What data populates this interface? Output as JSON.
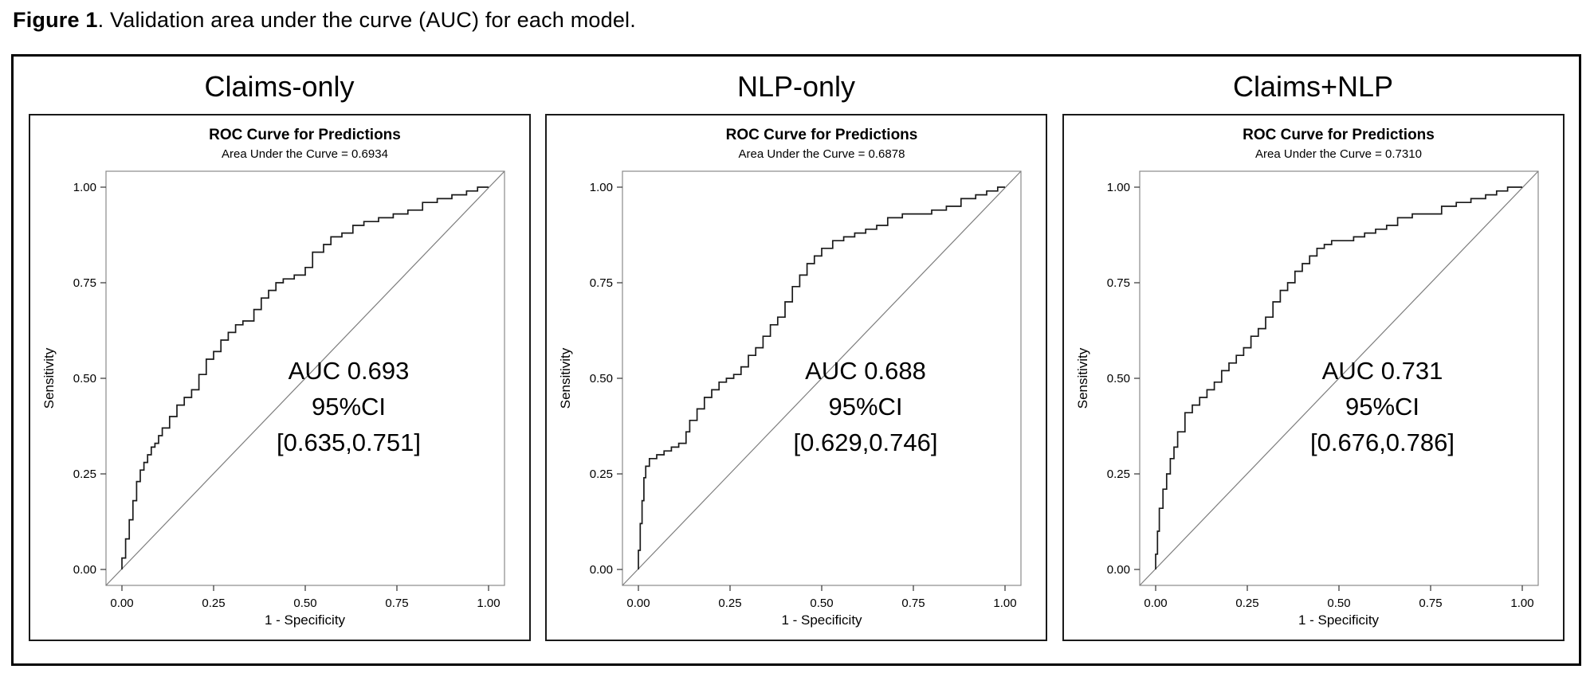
{
  "caption": {
    "label": "Figure 1",
    "rest": ". Validation area under the curve (AUC) for each model."
  },
  "colors": {
    "curve": "#1a1a1a",
    "diagonal": "#7d7d7d",
    "frame": "#8a8a8a",
    "outer_border": "#000000"
  },
  "panels": [
    {
      "title": "Claims-only",
      "chart_title": "ROC Curve for Predictions",
      "chart_subtitle": "Area Under the Curve = 0.6934",
      "ylabel": "Sensitivity",
      "xlabel": "1 - Specificity",
      "annotation": [
        "AUC 0.693",
        "95%CI",
        "[0.635,0.751]"
      ]
    },
    {
      "title": "NLP-only",
      "chart_title": "ROC Curve for Predictions",
      "chart_subtitle": "Area Under the Curve = 0.6878",
      "ylabel": "Sensitivity",
      "xlabel": "1 - Specificity",
      "annotation": [
        "AUC 0.688",
        "95%CI",
        "[0.629,0.746]"
      ]
    },
    {
      "title": "Claims+NLP",
      "chart_title": "ROC Curve for Predictions",
      "chart_subtitle": "Area Under the Curve = 0.7310",
      "ylabel": "Sensitivity",
      "xlabel": "1 - Specificity",
      "annotation": [
        "AUC 0.731",
        "95%CI",
        "[0.676,0.786]"
      ]
    }
  ],
  "chart_data": [
    {
      "type": "line",
      "panel": "Claims-only",
      "title": "ROC Curve for Predictions",
      "subtitle": "Area Under the Curve = 0.6934",
      "auc": 0.6934,
      "ci_95": [
        0.635,
        0.751
      ],
      "xlabel": "1 - Specificity",
      "ylabel": "Sensitivity",
      "xlim": [
        0,
        1
      ],
      "ylim": [
        0,
        1
      ],
      "x_ticks": [
        "0.00",
        "0.25",
        "0.50",
        "0.75",
        "1.00"
      ],
      "y_ticks": [
        "0.00",
        "0.25",
        "0.50",
        "0.75",
        "1.00"
      ],
      "reference_line": "diagonal",
      "grid": false,
      "legend": false,
      "series": [
        {
          "name": "ROC curve (step)",
          "points": [
            [
              0,
              0
            ],
            [
              0.01,
              0.03
            ],
            [
              0.02,
              0.08
            ],
            [
              0.03,
              0.13
            ],
            [
              0.04,
              0.18
            ],
            [
              0.05,
              0.23
            ],
            [
              0.06,
              0.26
            ],
            [
              0.07,
              0.28
            ],
            [
              0.08,
              0.3
            ],
            [
              0.09,
              0.32
            ],
            [
              0.1,
              0.33
            ],
            [
              0.11,
              0.35
            ],
            [
              0.13,
              0.37
            ],
            [
              0.15,
              0.4
            ],
            [
              0.17,
              0.43
            ],
            [
              0.19,
              0.45
            ],
            [
              0.21,
              0.47
            ],
            [
              0.23,
              0.51
            ],
            [
              0.25,
              0.55
            ],
            [
              0.27,
              0.57
            ],
            [
              0.29,
              0.6
            ],
            [
              0.31,
              0.62
            ],
            [
              0.33,
              0.64
            ],
            [
              0.36,
              0.65
            ],
            [
              0.38,
              0.68
            ],
            [
              0.4,
              0.71
            ],
            [
              0.42,
              0.73
            ],
            [
              0.44,
              0.75
            ],
            [
              0.47,
              0.76
            ],
            [
              0.5,
              0.77
            ],
            [
              0.52,
              0.79
            ],
            [
              0.55,
              0.83
            ],
            [
              0.57,
              0.85
            ],
            [
              0.6,
              0.87
            ],
            [
              0.63,
              0.88
            ],
            [
              0.66,
              0.9
            ],
            [
              0.7,
              0.91
            ],
            [
              0.74,
              0.92
            ],
            [
              0.78,
              0.93
            ],
            [
              0.82,
              0.94
            ],
            [
              0.86,
              0.96
            ],
            [
              0.9,
              0.97
            ],
            [
              0.94,
              0.98
            ],
            [
              0.97,
              0.99
            ],
            [
              1,
              1
            ]
          ]
        }
      ]
    },
    {
      "type": "line",
      "panel": "NLP-only",
      "title": "ROC Curve for Predictions",
      "subtitle": "Area Under the Curve = 0.6878",
      "auc": 0.6878,
      "ci_95": [
        0.629,
        0.746
      ],
      "xlabel": "1 - Specificity",
      "ylabel": "Sensitivity",
      "xlim": [
        0,
        1
      ],
      "ylim": [
        0,
        1
      ],
      "x_ticks": [
        "0.00",
        "0.25",
        "0.50",
        "0.75",
        "1.00"
      ],
      "y_ticks": [
        "0.00",
        "0.25",
        "0.50",
        "0.75",
        "1.00"
      ],
      "reference_line": "diagonal",
      "grid": false,
      "legend": false,
      "series": [
        {
          "name": "ROC curve (step)",
          "points": [
            [
              0,
              0
            ],
            [
              0.005,
              0.05
            ],
            [
              0.01,
              0.12
            ],
            [
              0.015,
              0.18
            ],
            [
              0.02,
              0.24
            ],
            [
              0.03,
              0.27
            ],
            [
              0.05,
              0.29
            ],
            [
              0.07,
              0.3
            ],
            [
              0.09,
              0.31
            ],
            [
              0.11,
              0.32
            ],
            [
              0.13,
              0.33
            ],
            [
              0.14,
              0.36
            ],
            [
              0.16,
              0.39
            ],
            [
              0.18,
              0.42
            ],
            [
              0.2,
              0.45
            ],
            [
              0.22,
              0.47
            ],
            [
              0.24,
              0.49
            ],
            [
              0.26,
              0.5
            ],
            [
              0.28,
              0.51
            ],
            [
              0.3,
              0.53
            ],
            [
              0.32,
              0.56
            ],
            [
              0.34,
              0.58
            ],
            [
              0.36,
              0.61
            ],
            [
              0.38,
              0.64
            ],
            [
              0.4,
              0.66
            ],
            [
              0.42,
              0.7
            ],
            [
              0.44,
              0.74
            ],
            [
              0.46,
              0.77
            ],
            [
              0.48,
              0.8
            ],
            [
              0.5,
              0.82
            ],
            [
              0.53,
              0.84
            ],
            [
              0.56,
              0.86
            ],
            [
              0.59,
              0.87
            ],
            [
              0.62,
              0.88
            ],
            [
              0.65,
              0.89
            ],
            [
              0.68,
              0.9
            ],
            [
              0.72,
              0.92
            ],
            [
              0.76,
              0.93
            ],
            [
              0.8,
              0.93
            ],
            [
              0.84,
              0.94
            ],
            [
              0.88,
              0.95
            ],
            [
              0.92,
              0.97
            ],
            [
              0.95,
              0.98
            ],
            [
              0.98,
              0.99
            ],
            [
              1,
              1
            ]
          ]
        }
      ]
    },
    {
      "type": "line",
      "panel": "Claims+NLP",
      "title": "ROC Curve for Predictions",
      "subtitle": "Area Under the Curve = 0.7310",
      "auc": 0.731,
      "ci_95": [
        0.676,
        0.786
      ],
      "xlabel": "1 - Specificity",
      "ylabel": "Sensitivity",
      "xlim": [
        0,
        1
      ],
      "ylim": [
        0,
        1
      ],
      "x_ticks": [
        "0.00",
        "0.25",
        "0.50",
        "0.75",
        "1.00"
      ],
      "y_ticks": [
        "0.00",
        "0.25",
        "0.50",
        "0.75",
        "1.00"
      ],
      "reference_line": "diagonal",
      "grid": false,
      "legend": false,
      "series": [
        {
          "name": "ROC curve (step)",
          "points": [
            [
              0,
              0
            ],
            [
              0.005,
              0.04
            ],
            [
              0.01,
              0.1
            ],
            [
              0.02,
              0.16
            ],
            [
              0.03,
              0.21
            ],
            [
              0.04,
              0.25
            ],
            [
              0.05,
              0.29
            ],
            [
              0.06,
              0.32
            ],
            [
              0.08,
              0.36
            ],
            [
              0.1,
              0.41
            ],
            [
              0.12,
              0.43
            ],
            [
              0.14,
              0.45
            ],
            [
              0.16,
              0.47
            ],
            [
              0.18,
              0.49
            ],
            [
              0.2,
              0.52
            ],
            [
              0.22,
              0.54
            ],
            [
              0.24,
              0.56
            ],
            [
              0.26,
              0.58
            ],
            [
              0.28,
              0.61
            ],
            [
              0.3,
              0.63
            ],
            [
              0.32,
              0.66
            ],
            [
              0.34,
              0.7
            ],
            [
              0.36,
              0.73
            ],
            [
              0.38,
              0.75
            ],
            [
              0.4,
              0.78
            ],
            [
              0.42,
              0.8
            ],
            [
              0.44,
              0.82
            ],
            [
              0.46,
              0.84
            ],
            [
              0.48,
              0.85
            ],
            [
              0.51,
              0.86
            ],
            [
              0.54,
              0.86
            ],
            [
              0.57,
              0.87
            ],
            [
              0.6,
              0.88
            ],
            [
              0.63,
              0.89
            ],
            [
              0.66,
              0.9
            ],
            [
              0.7,
              0.92
            ],
            [
              0.74,
              0.93
            ],
            [
              0.78,
              0.93
            ],
            [
              0.82,
              0.95
            ],
            [
              0.86,
              0.96
            ],
            [
              0.9,
              0.97
            ],
            [
              0.93,
              0.98
            ],
            [
              0.96,
              0.99
            ],
            [
              1,
              1
            ]
          ]
        }
      ]
    }
  ]
}
